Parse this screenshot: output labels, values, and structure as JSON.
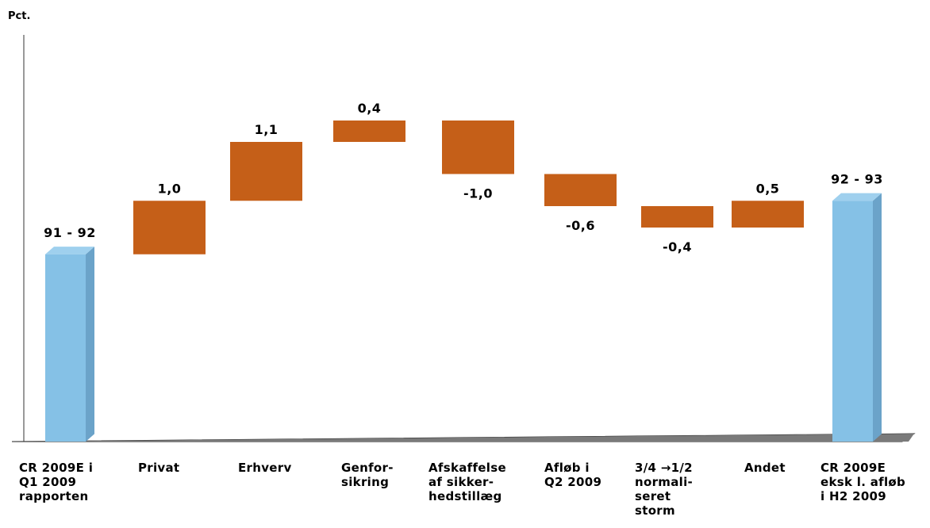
{
  "chart_data": {
    "type": "bar",
    "variant": "waterfall",
    "ylabel": "Pct.",
    "xlabel": "",
    "title": "",
    "grid": false,
    "legend": "none",
    "bar_colors": {
      "total": "#85C1E6",
      "total_side": "#6BA3C9",
      "total_top": "#9FD0EE",
      "change": "#C55F18"
    },
    "categories": [
      "CR 2009E i\nQ1 2009\nrapporten",
      "Privat",
      "Erhverv",
      "Genfor-\nsikring",
      "Afskaffelse\naf sikker-\nhedstillæg",
      "Afløb i\nQ2 2009",
      "3/4 →1/2\nnormali-\nseret\nstorm",
      "Andet",
      "CR 2009E\neksk l. afløb\ni H2 2009"
    ],
    "values": [
      91.5,
      1.0,
      1.1,
      0.4,
      -1.0,
      -0.6,
      -0.4,
      0.5,
      92.5
    ],
    "kinds": [
      "total",
      "change",
      "change",
      "change",
      "change",
      "change",
      "change",
      "change",
      "total"
    ],
    "data_labels": [
      "91 - 92",
      "1,0",
      "1,1",
      "0,4",
      "-1,0",
      "-0,6",
      "-0,4",
      "0,5",
      "92 - 93"
    ]
  }
}
